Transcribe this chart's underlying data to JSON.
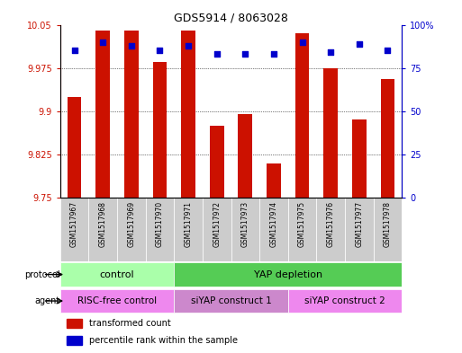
{
  "title": "GDS5914 / 8063028",
  "samples": [
    "GSM1517967",
    "GSM1517968",
    "GSM1517969",
    "GSM1517970",
    "GSM1517971",
    "GSM1517972",
    "GSM1517973",
    "GSM1517974",
    "GSM1517975",
    "GSM1517976",
    "GSM1517977",
    "GSM1517978"
  ],
  "transformed_count": [
    9.925,
    10.04,
    10.04,
    9.985,
    10.04,
    9.875,
    9.895,
    9.81,
    10.035,
    9.975,
    9.885,
    9.955
  ],
  "percentile_rank": [
    85,
    90,
    88,
    85,
    88,
    83,
    83,
    83,
    90,
    84,
    89,
    85
  ],
  "y_min": 9.75,
  "y_max": 10.05,
  "y_ticks": [
    9.75,
    9.825,
    9.9,
    9.975,
    10.05
  ],
  "y2_ticks": [
    0,
    25,
    50,
    75,
    100
  ],
  "bar_color": "#cc1100",
  "dot_color": "#0000cc",
  "protocol_groups": [
    {
      "label": "control",
      "start": 0,
      "end": 3,
      "color": "#aaffaa"
    },
    {
      "label": "YAP depletion",
      "start": 4,
      "end": 11,
      "color": "#55cc55"
    }
  ],
  "agent_groups": [
    {
      "label": "RISC-free control",
      "start": 0,
      "end": 3,
      "color": "#ee88ee"
    },
    {
      "label": "siYAP construct 1",
      "start": 4,
      "end": 7,
      "color": "#cc88cc"
    },
    {
      "label": "siYAP construct 2",
      "start": 8,
      "end": 11,
      "color": "#ee88ee"
    }
  ],
  "legend_items": [
    {
      "label": "transformed count",
      "color": "#cc1100"
    },
    {
      "label": "percentile rank within the sample",
      "color": "#0000cc"
    }
  ],
  "tick_label_color_left": "#cc1100",
  "tick_label_color_right": "#0000cc",
  "sample_bg_color": "#cccccc"
}
